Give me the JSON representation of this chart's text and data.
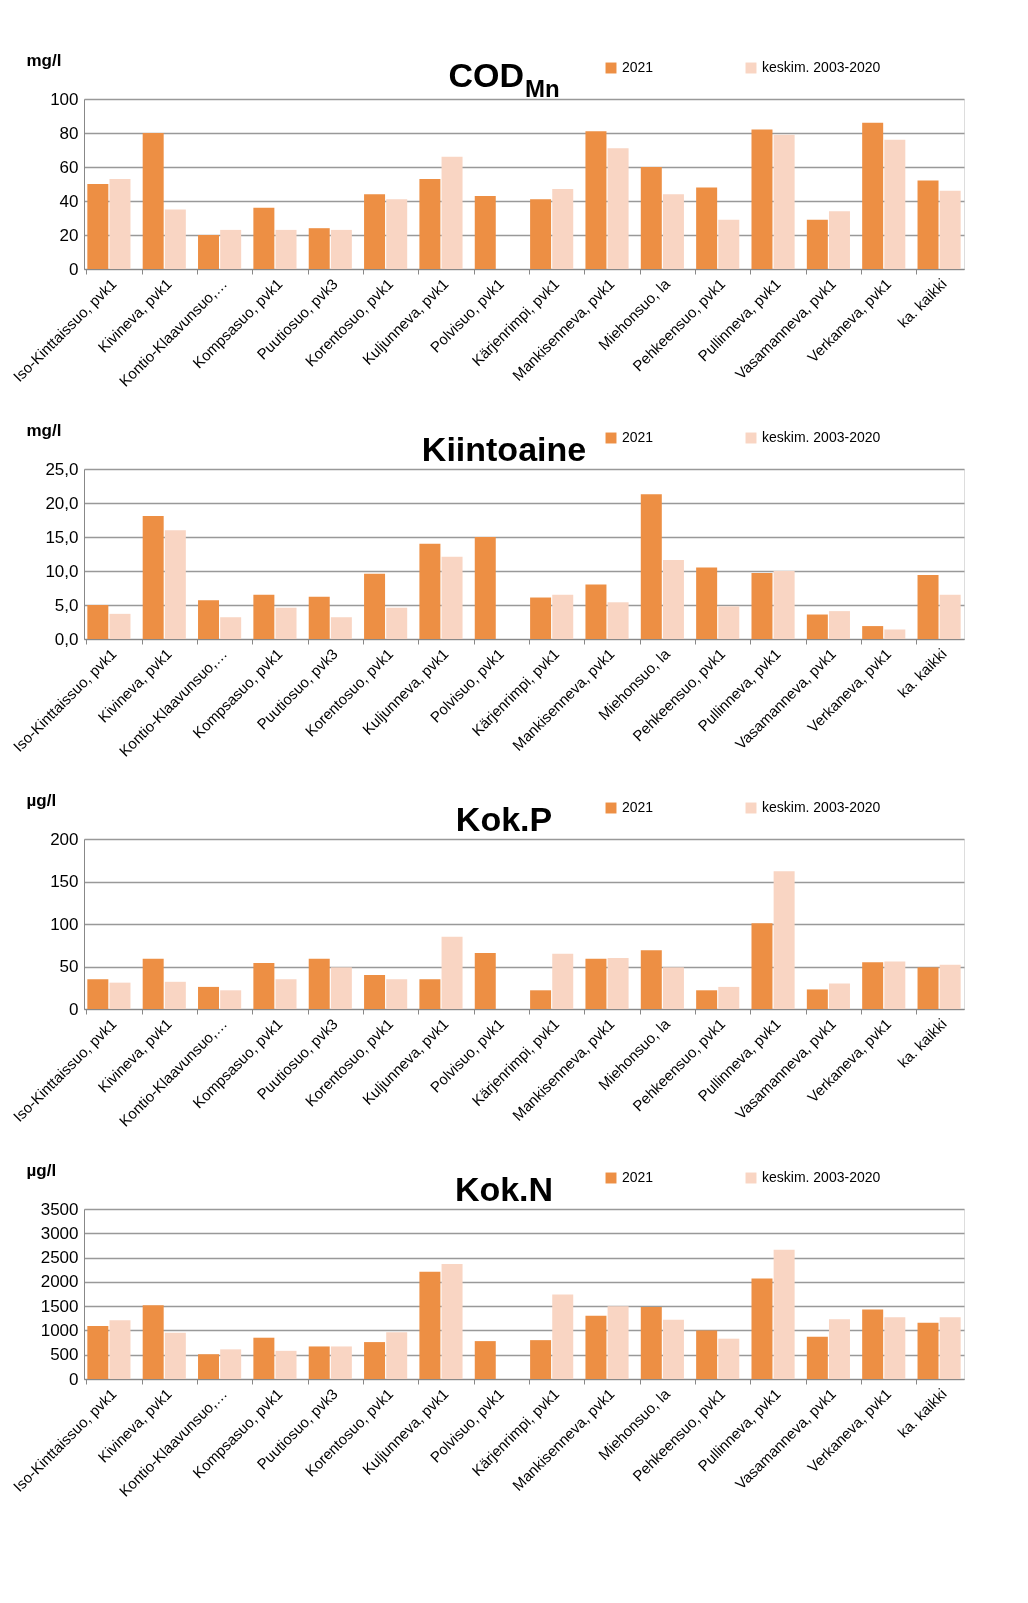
{
  "chart_data": [
    {
      "type": "bar",
      "title": "COD$_{Mn}$",
      "ylabel": "mg/l",
      "categories": [
        "Iso-Kinttaissuo, pvk1",
        "Kivineva, pvk1",
        "Kontio-Klaavunsuo,…",
        "Kompsasuo, pvk1",
        "Puutiosuo, pvk3",
        "Korentosuo, pvk1",
        "Kuljunneva, pvk1",
        "Polvisuo, pvk1",
        "Kärjenrimpi, pvk1",
        "Mankisenneva, pvk1",
        "Miehonsuo, la",
        "Pehkeensuo, pvk1",
        "Pullinneva, pvk1",
        "Vasamanneva, pvk1",
        "Verkaneva, pvk1",
        "ka. kaikki"
      ],
      "series": [
        {
          "name": "2021",
          "color": "#ed8f44",
          "values": [
            50,
            80,
            20,
            36,
            24,
            44,
            53,
            43,
            41,
            81,
            60,
            48,
            82,
            29,
            86,
            52
          ]
        },
        {
          "name": "keskim. 2003-2020",
          "color": "#f9d5c3",
          "values": [
            53,
            35,
            23,
            23,
            23,
            41,
            66,
            null,
            47,
            71,
            44,
            29,
            79,
            34,
            76,
            46
          ]
        }
      ],
      "ylim": [
        0,
        100
      ],
      "yticks": [
        0,
        20,
        40,
        60,
        80,
        100
      ],
      "grid": "y",
      "legend": "top right"
    },
    {
      "type": "bar",
      "title": "Kiintoaine",
      "ylabel": "mg/l",
      "categories": [
        "Iso-Kinttaissuo, pvk1",
        "Kivineva, pvk1",
        "Kontio-Klaavunsuo,…",
        "Kompsasuo, pvk1",
        "Puutiosuo, pvk3",
        "Korentosuo, pvk1",
        "Kuljunneva, pvk1",
        "Polvisuo, pvk1",
        "Kärjenrimpi, pvk1",
        "Mankisenneva, pvk1",
        "Miehonsuo, la",
        "Pehkeensuo, pvk1",
        "Pullinneva, pvk1",
        "Vasamanneva, pvk1",
        "Verkaneva, pvk1",
        "ka. kaikki"
      ],
      "series": [
        {
          "name": "2021",
          "color": "#ed8f44",
          "values": [
            5.0,
            18.1,
            5.7,
            6.5,
            6.2,
            9.6,
            14.0,
            15.0,
            6.1,
            8.0,
            21.3,
            10.5,
            9.7,
            3.6,
            1.9,
            9.4
          ]
        },
        {
          "name": "keskim. 2003-2020",
          "color": "#f9d5c3",
          "values": [
            3.7,
            16.0,
            3.2,
            4.6,
            3.2,
            4.6,
            12.1,
            null,
            6.5,
            5.4,
            11.6,
            4.8,
            10.0,
            4.1,
            1.4,
            6.5
          ]
        }
      ],
      "ylim": [
        0,
        25
      ],
      "yticks": [
        {
          "value": 0,
          "label": "0,0"
        },
        {
          "value": 5,
          "label": "5,0"
        },
        {
          "value": 10,
          "label": "10,0"
        },
        {
          "value": 15,
          "label": "15,0"
        },
        {
          "value": 20,
          "label": "20,0"
        },
        {
          "value": 25,
          "label": "25,0"
        }
      ],
      "grid": "y",
      "legend": "top right"
    },
    {
      "type": "bar",
      "title": "Kok.P",
      "ylabel": "µg/l",
      "categories": [
        "Iso-Kinttaissuo, pvk1",
        "Kivineva, pvk1",
        "Kontio-Klaavunsuo,…",
        "Kompsasuo, pvk1",
        "Puutiosuo, pvk3",
        "Korentosuo, pvk1",
        "Kuljunneva, pvk1",
        "Polvisuo, pvk1",
        "Kärjenrimpi, pvk1",
        "Mankisenneva, pvk1",
        "Miehonsuo, la",
        "Pehkeensuo, pvk1",
        "Pullinneva, pvk1",
        "Vasamanneva, pvk1",
        "Verkaneva, pvk1",
        "ka. kaikki"
      ],
      "series": [
        {
          "name": "2021",
          "color": "#ed8f44",
          "values": [
            35,
            59,
            26,
            54,
            59,
            40,
            35,
            66,
            22,
            59,
            69,
            22,
            101,
            23,
            55,
            49
          ]
        },
        {
          "name": "keskim. 2003-2020",
          "color": "#f9d5c3",
          "values": [
            31,
            32,
            22,
            35,
            49,
            35,
            85,
            null,
            65,
            60,
            49,
            26,
            162,
            30,
            56,
            52
          ]
        }
      ],
      "ylim": [
        0,
        200
      ],
      "yticks": [
        0,
        50,
        100,
        150,
        200
      ],
      "grid": "y",
      "legend": "top right"
    },
    {
      "type": "bar",
      "title": "Kok.N",
      "ylabel": "µg/l",
      "categories": [
        "Iso-Kinttaissuo, pvk1",
        "Kivineva, pvk1",
        "Kontio-Klaavunsuo,…",
        "Kompsasuo, pvk1",
        "Puutiosuo, pvk3",
        "Korentosuo, pvk1",
        "Kuljunneva, pvk1",
        "Polvisuo, pvk1",
        "Kärjenrimpi, pvk1",
        "Mankisenneva, pvk1",
        "Miehonsuo, la",
        "Pehkeensuo, pvk1",
        "Pullinneva, pvk1",
        "Vasamanneva, pvk1",
        "Verkaneva, pvk1",
        "ka. kaikki"
      ],
      "series": [
        {
          "name": "2021",
          "color": "#ed8f44",
          "values": [
            1090,
            1520,
            510,
            850,
            670,
            760,
            2210,
            780,
            800,
            1300,
            1480,
            1000,
            2070,
            870,
            1430,
            1160
          ]
        },
        {
          "name": "keskim. 2003-2020",
          "color": "#f9d5c3",
          "values": [
            1210,
            950,
            610,
            580,
            670,
            960,
            2370,
            null,
            1740,
            1500,
            1220,
            830,
            2660,
            1230,
            1270,
            1270
          ]
        }
      ],
      "ylim": [
        0,
        3500
      ],
      "yticks": [
        0,
        500,
        1000,
        1500,
        2000,
        2500,
        3000,
        3500
      ],
      "grid": "y",
      "legend": "top right"
    }
  ]
}
